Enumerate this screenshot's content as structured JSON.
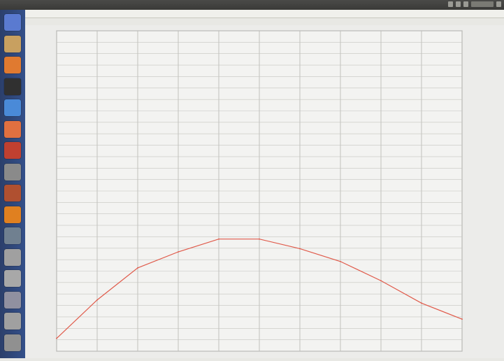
{
  "window": {
    "title": "",
    "status_right": ""
  },
  "launcher": {
    "items": [
      {
        "icon": "dash-icon",
        "color": "#5a7ad0"
      },
      {
        "icon": "files-icon",
        "color": "#c8a060"
      },
      {
        "icon": "firefox-icon",
        "color": "#e07a30"
      },
      {
        "icon": "terminal-icon",
        "color": "#303030"
      },
      {
        "icon": "writer-icon",
        "color": "#4a8ad8"
      },
      {
        "icon": "calc-icon",
        "color": "#e07040"
      },
      {
        "icon": "software-center-icon",
        "color": "#c04030"
      },
      {
        "icon": "settings-icon",
        "color": "#8a8a8a"
      },
      {
        "icon": "app-icon",
        "color": "#b05030"
      },
      {
        "icon": "vlc-icon",
        "color": "#e08020"
      },
      {
        "icon": "app2-icon",
        "color": "#708090"
      },
      {
        "icon": "drive-icon",
        "color": "#a0a0a0"
      },
      {
        "icon": "drive2-icon",
        "color": "#a8a8a8"
      },
      {
        "icon": "app3-icon",
        "color": "#9090a0"
      },
      {
        "icon": "drive3-icon",
        "color": "#a0a0a0"
      },
      {
        "icon": "trash-icon",
        "color": "#909090"
      }
    ]
  },
  "menubar": {
    "items": [
      "",
      "",
      "",
      "",
      ""
    ]
  },
  "info": {
    "text": ""
  },
  "chart_data": {
    "type": "line",
    "title": "",
    "xlabel": "",
    "ylabel": "",
    "xlim": [
      0,
      10
    ],
    "ylim": [
      0,
      1
    ],
    "grid": true,
    "legend_position": "top-right",
    "series": [
      {
        "name": "",
        "color": "#e05a4a",
        "x": [
          0,
          1,
          2,
          3,
          4,
          5,
          6,
          7,
          8,
          9,
          10
        ],
        "y": [
          0.04,
          0.16,
          0.26,
          0.31,
          0.35,
          0.35,
          0.32,
          0.28,
          0.22,
          0.15,
          0.1
        ]
      }
    ]
  }
}
